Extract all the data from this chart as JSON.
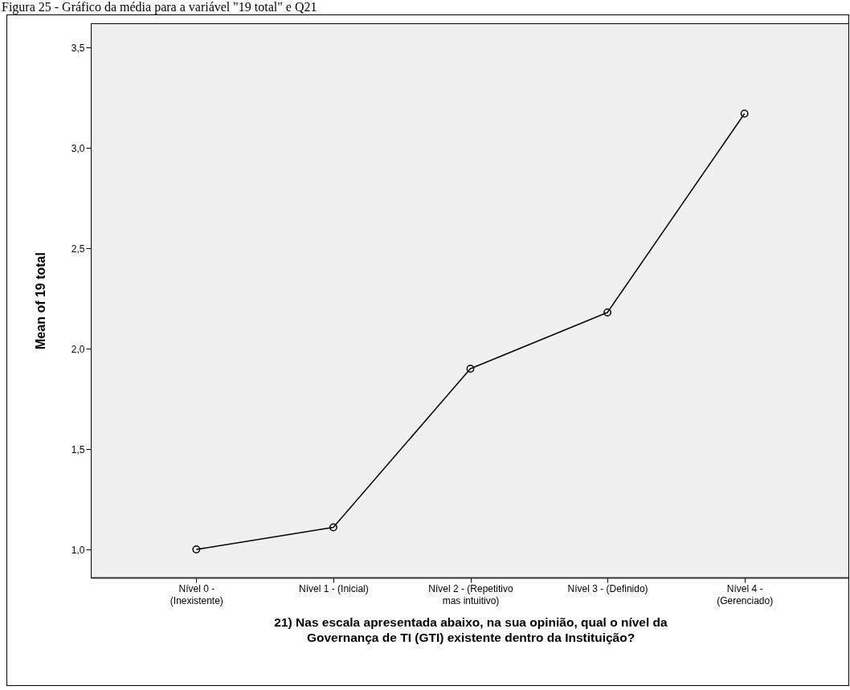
{
  "chart_data": {
    "type": "line",
    "title": "Figura 25 - Gráfico da média para a variável \"19 total\" e Q21",
    "xlabel": "21)  Nas escala apresentada abaixo, na sua opinião, qual o nível da Governança de TI (GTI) existente dentro da Instituição?",
    "ylabel": "Mean of 19 total",
    "categories": [
      "Nível 0 - (Inexistente)",
      "Nível 1 - (Inicial)",
      "Nível 2 - (Repetitivo mas intuitivo)",
      "Nível 3 - (Definido)",
      "Nível 4 - (Gerenciado)"
    ],
    "series": [
      {
        "color": "#000000",
        "values": [
          1.0,
          1.11,
          1.9,
          2.18,
          3.17
        ]
      }
    ],
    "ylim": [
      0.86,
      3.62
    ],
    "yticks": [
      {
        "value": 1,
        "label": "1,0"
      },
      {
        "value": 1.5,
        "label": "1,5"
      },
      {
        "value": 2,
        "label": "2,0"
      },
      {
        "value": 2.5,
        "label": "2,5"
      },
      {
        "value": 3,
        "label": "3,0"
      },
      {
        "value": 3.5,
        "label": "3,5"
      }
    ],
    "grid": false,
    "marker": "circle",
    "line_style": "solid"
  }
}
